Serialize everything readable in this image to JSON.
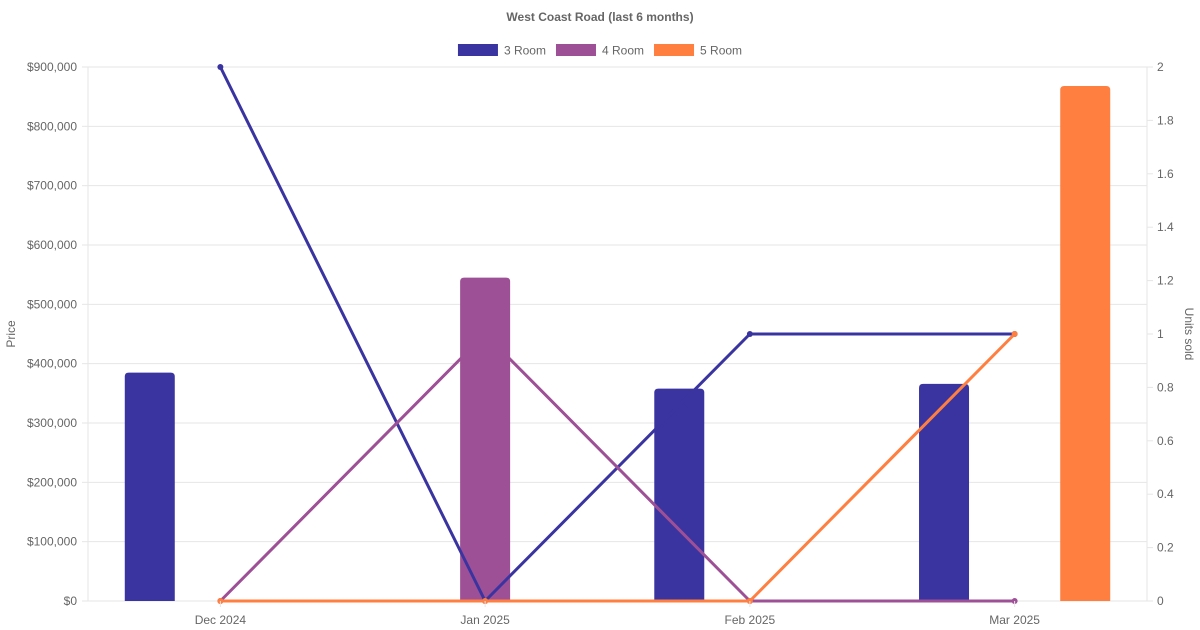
{
  "chart_data": {
    "type": "bar",
    "title": "West Coast Road (last 6 months)",
    "categories": [
      "Dec 2024",
      "Jan 2025",
      "Feb 2025",
      "Mar 2025"
    ],
    "y_left": {
      "label": "Price",
      "ticks": [
        "$0",
        "$100,000",
        "$200,000",
        "$300,000",
        "$400,000",
        "$500,000",
        "$600,000",
        "$700,000",
        "$800,000",
        "$900,000"
      ],
      "min": 0,
      "max": 900000
    },
    "y_right": {
      "label": "Units sold",
      "ticks": [
        "0",
        "0.2",
        "0.4",
        "0.6",
        "0.8",
        "1",
        "1.2",
        "1.4",
        "1.6",
        "1.8",
        "2"
      ],
      "min": 0,
      "max": 2
    },
    "legend_position": "top",
    "grid": true,
    "series": [
      {
        "name": "3 Room",
        "color": "#3a34a0",
        "price": [
          385000,
          0,
          358000,
          366000
        ],
        "units": [
          2,
          0,
          1,
          1
        ]
      },
      {
        "name": "4 Room",
        "color": "#9e5096",
        "price": [
          0,
          545000,
          0,
          0
        ],
        "units": [
          0,
          1,
          0,
          0
        ]
      },
      {
        "name": "5 Room",
        "color": "#ff7f41",
        "price": [
          0,
          0,
          0,
          868000
        ],
        "units": [
          0,
          0,
          0,
          1
        ]
      }
    ]
  }
}
